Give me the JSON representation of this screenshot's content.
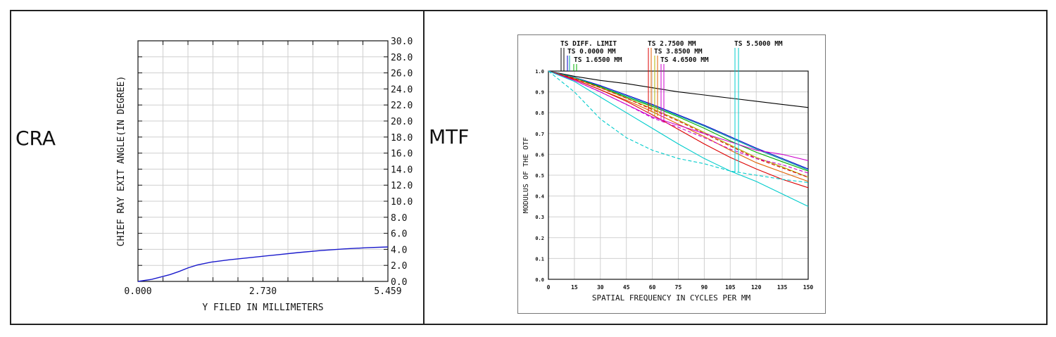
{
  "panels": {
    "left_label": "CRA",
    "right_label": "MTF"
  },
  "chart_data": [
    {
      "type": "line",
      "title": "",
      "xlabel": "Y FILED IN MILLIMETERS",
      "ylabel": "CHIEF RAY EXIT ANGLE(IN DEGREE)",
      "xlim": [
        0,
        5.459
      ],
      "ylim": [
        0,
        30
      ],
      "x_tick_labels": [
        "0.000",
        "2.730",
        "5.459"
      ],
      "y_tick_labels": [
        "0.0",
        "2.0",
        "4.0",
        "6.0",
        "8.0",
        "10.0",
        "12.0",
        "14.0",
        "16.0",
        "18.0",
        "20.0",
        "22.0",
        "24.0",
        "26.0",
        "28.0",
        "30.0"
      ],
      "grid": true,
      "series": [
        {
          "color": "#1a1acc",
          "x": [
            0,
            0.3,
            0.5,
            0.7,
            0.9,
            1.1,
            1.3,
            1.6,
            2.0,
            2.5,
            3.0,
            3.5,
            4.0,
            4.5,
            5.0,
            5.459
          ],
          "y": [
            0,
            0.25,
            0.55,
            0.85,
            1.25,
            1.7,
            2.05,
            2.4,
            2.7,
            3.0,
            3.3,
            3.6,
            3.85,
            4.05,
            4.2,
            4.3
          ]
        }
      ]
    },
    {
      "type": "line",
      "title": "",
      "xlabel": "SPATIAL FREQUENCY IN CYCLES PER MM",
      "ylabel": "MODULUS OF THE OTF",
      "xlim": [
        0,
        150
      ],
      "ylim": [
        0,
        1
      ],
      "x_tick_labels": [
        "0",
        "15",
        "30",
        "45",
        "60",
        "75",
        "90",
        "105",
        "120",
        "135",
        "150"
      ],
      "y_tick_labels": [
        "0.0",
        "0.1",
        "0.2",
        "0.3",
        "0.4",
        "0.5",
        "0.6",
        "0.7",
        "0.8",
        "0.9",
        "1.0"
      ],
      "legend_labels": [
        "TS DIFF. LIMIT",
        "TS 0.0000 MM",
        "TS 1.6500 MM",
        "TS 2.7500 MM",
        "TS 3.8500 MM",
        "TS 4.6500 MM",
        "TS 5.5000 MM"
      ],
      "legend_placement": "top",
      "grid": true,
      "x": [
        0,
        15,
        30,
        45,
        60,
        75,
        90,
        105,
        120,
        135,
        150
      ],
      "series": [
        {
          "color": "#000000",
          "y": [
            1.0,
            0.975,
            0.955,
            0.94,
            0.92,
            0.9,
            0.885,
            0.87,
            0.855,
            0.84,
            0.825
          ]
        },
        {
          "color": "#0000cc",
          "y": [
            1.0,
            0.97,
            0.93,
            0.885,
            0.84,
            0.79,
            0.74,
            0.685,
            0.63,
            0.58,
            0.53
          ]
        },
        {
          "color": "#00a0a0",
          "y": [
            1.0,
            0.97,
            0.925,
            0.88,
            0.835,
            0.785,
            0.735,
            0.68,
            0.625,
            0.575,
            0.525
          ]
        },
        {
          "color": "#00b000",
          "y": [
            1.0,
            0.965,
            0.925,
            0.875,
            0.83,
            0.78,
            0.725,
            0.665,
            0.61,
            0.565,
            0.52
          ]
        },
        {
          "color": "#b0b000",
          "y": [
            1.0,
            0.965,
            0.92,
            0.87,
            0.82,
            0.765,
            0.705,
            0.645,
            0.585,
            0.54,
            0.49
          ]
        },
        {
          "color": "#e06000",
          "y": [
            1.0,
            0.96,
            0.91,
            0.86,
            0.805,
            0.745,
            0.685,
            0.62,
            0.56,
            0.515,
            0.47
          ]
        },
        {
          "color": "#dd0000",
          "y": [
            1.0,
            0.96,
            0.91,
            0.855,
            0.79,
            0.72,
            0.65,
            0.585,
            0.53,
            0.48,
            0.44
          ]
        },
        {
          "color": "#dd0000",
          "dash": true,
          "y": [
            1.0,
            0.965,
            0.92,
            0.87,
            0.815,
            0.76,
            0.7,
            0.64,
            0.58,
            0.535,
            0.49
          ]
        },
        {
          "color": "#cc00cc",
          "y": [
            1.0,
            0.955,
            0.9,
            0.84,
            0.78,
            0.74,
            0.7,
            0.66,
            0.62,
            0.6,
            0.57
          ]
        },
        {
          "color": "#cc00cc",
          "dash": true,
          "y": [
            1.0,
            0.955,
            0.9,
            0.84,
            0.775,
            0.73,
            0.68,
            0.625,
            0.58,
            0.55,
            0.51
          ]
        },
        {
          "color": "#00cccc",
          "y": [
            1.0,
            0.95,
            0.875,
            0.8,
            0.725,
            0.65,
            0.58,
            0.52,
            0.47,
            0.41,
            0.35
          ]
        },
        {
          "color": "#00cccc",
          "dash": true,
          "y": [
            1.0,
            0.9,
            0.77,
            0.68,
            0.62,
            0.58,
            0.555,
            0.52,
            0.5,
            0.48,
            0.465
          ]
        }
      ]
    }
  ]
}
